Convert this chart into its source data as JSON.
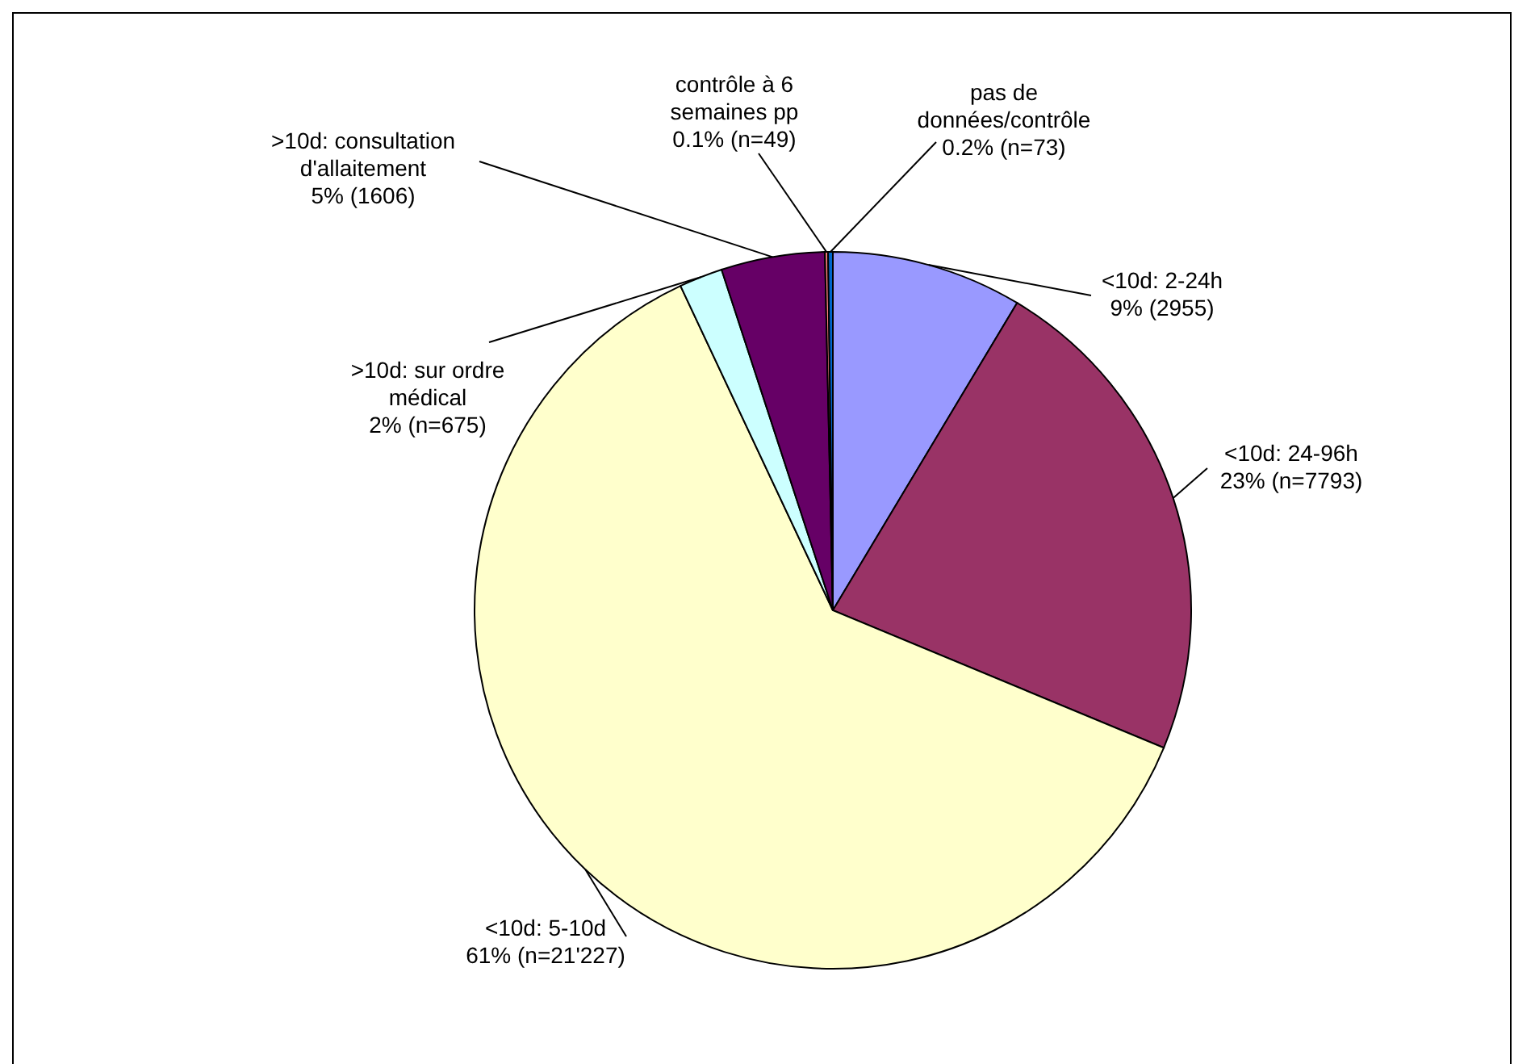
{
  "chart_data": {
    "type": "pie",
    "categories": [
      "<10d: 2-24h",
      "<10d: 24-96h",
      "<10d: 5-10d",
      ">10d: sur ordre\nmédical",
      ">10d: consultation\nd'allaitement",
      "contrôle à 6\nsemaines pp",
      "pas de\ndonnées/contrôle"
    ],
    "values": [
      2955,
      7793,
      21227,
      675,
      1606,
      49,
      73
    ],
    "value_labels": [
      "9% (2955)",
      "23% (n=7793)",
      "61% (n=21'227)",
      "2% (n=675)",
      "5% (1606)",
      "0.1% (n=49)",
      "0.2% (n=73)"
    ],
    "colors": [
      "#9999ff",
      "#993366",
      "#ffffcc",
      "#ccffff",
      "#660066",
      "#ff8080",
      "#0066cc"
    ]
  }
}
